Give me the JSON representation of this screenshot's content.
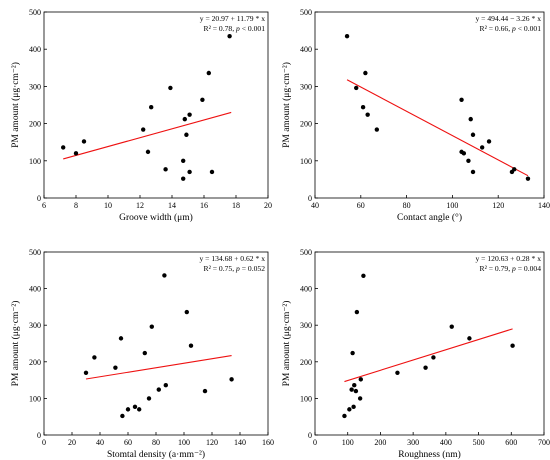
{
  "chart_data": [
    {
      "type": "scatter",
      "id": "groove",
      "xlabel": "Groove width (μm)",
      "ylabel": "PM amount (μg·cm⁻²)",
      "xlim": [
        6,
        20
      ],
      "ylim": [
        0,
        500
      ],
      "xticks": [
        6,
        8,
        10,
        12,
        14,
        16,
        18,
        20
      ],
      "yticks": [
        0,
        100,
        200,
        300,
        400,
        500
      ],
      "points": [
        [
          7.2,
          136
        ],
        [
          8.0,
          120
        ],
        [
          8.5,
          152
        ],
        [
          12.2,
          184
        ],
        [
          12.5,
          124
        ],
        [
          12.7,
          244
        ],
        [
          13.6,
          77
        ],
        [
          13.9,
          296
        ],
        [
          14.7,
          52
        ],
        [
          14.7,
          100
        ],
        [
          14.8,
          212
        ],
        [
          14.9,
          170
        ],
        [
          15.1,
          224
        ],
        [
          15.1,
          70
        ],
        [
          15.9,
          264
        ],
        [
          16.3,
          336
        ],
        [
          16.5,
          70
        ],
        [
          17.6,
          435
        ]
      ],
      "fit_line": {
        "x": [
          7.2,
          17.7
        ],
        "y": [
          105,
          230
        ],
        "color": "#ee1111"
      },
      "equation": "y = 20.97 + 11.79 * x",
      "r2_label": "R² = 0.78, ",
      "p_symbol": "p",
      "p_value": " < 0.001",
      "grid": false
    },
    {
      "type": "scatter",
      "id": "contact",
      "xlabel": "Contact angle (°)",
      "ylabel": "PM amount (μg·cm⁻²)",
      "xlim": [
        40,
        140
      ],
      "ylim": [
        0,
        500
      ],
      "xticks": [
        40,
        60,
        80,
        100,
        120,
        140
      ],
      "yticks": [
        0,
        100,
        200,
        300,
        400,
        500
      ],
      "points": [
        [
          54,
          435
        ],
        [
          58,
          296
        ],
        [
          61,
          244
        ],
        [
          62,
          336
        ],
        [
          63,
          224
        ],
        [
          67,
          184
        ],
        [
          104,
          264
        ],
        [
          104,
          124
        ],
        [
          105,
          120
        ],
        [
          107,
          100
        ],
        [
          108,
          212
        ],
        [
          109,
          170
        ],
        [
          109,
          70
        ],
        [
          113,
          136
        ],
        [
          116,
          152
        ],
        [
          126,
          70
        ],
        [
          127,
          77
        ],
        [
          133,
          52
        ]
      ],
      "fit_line": {
        "x": [
          54,
          133
        ],
        "y": [
          318,
          60
        ],
        "color": "#ee1111"
      },
      "equation": "y = 494.44 − 3.26 * x",
      "r2_label": "R² = 0.66, ",
      "p_symbol": "p",
      "p_value": " < 0.001",
      "grid": false
    },
    {
      "type": "scatter",
      "id": "stomatal",
      "xlabel": "Stomtal density (a·mm⁻²)",
      "ylabel": "PM amount (μg·cm⁻²)",
      "xlim": [
        0,
        160
      ],
      "ylim": [
        0,
        500
      ],
      "xticks": [
        0,
        20,
        40,
        60,
        80,
        100,
        120,
        140,
        160
      ],
      "yticks": [
        0,
        100,
        200,
        300,
        400,
        500
      ],
      "points": [
        [
          30,
          170
        ],
        [
          36,
          212
        ],
        [
          51,
          184
        ],
        [
          55,
          264
        ],
        [
          56,
          52
        ],
        [
          60,
          70
        ],
        [
          65,
          77
        ],
        [
          68,
          70
        ],
        [
          72,
          224
        ],
        [
          75,
          100
        ],
        [
          77,
          296
        ],
        [
          82,
          124
        ],
        [
          86,
          436
        ],
        [
          87,
          136
        ],
        [
          102,
          336
        ],
        [
          105,
          244
        ],
        [
          115,
          120
        ],
        [
          134,
          152
        ]
      ],
      "fit_line": {
        "x": [
          30,
          134
        ],
        "y": [
          153,
          217
        ],
        "color": "#ee1111"
      },
      "equation": "y = 134.68 + 0.62 * x",
      "r2_label": "R² = 0.75, ",
      "p_symbol": "p",
      "p_value": " = 0.052",
      "grid": false
    },
    {
      "type": "scatter",
      "id": "roughness",
      "xlabel": "Roughness (nm)",
      "ylabel": "PM amount (μg·cm⁻²)",
      "xlim": [
        0,
        700
      ],
      "ylim": [
        0,
        500
      ],
      "xticks": [
        0,
        100,
        200,
        300,
        400,
        500,
        600,
        700
      ],
      "yticks": [
        0,
        100,
        200,
        300,
        400,
        500
      ],
      "points": [
        [
          90,
          52
        ],
        [
          105,
          70
        ],
        [
          112,
          124
        ],
        [
          115,
          224
        ],
        [
          118,
          77
        ],
        [
          120,
          136
        ],
        [
          125,
          120
        ],
        [
          128,
          336
        ],
        [
          138,
          100
        ],
        [
          140,
          152
        ],
        [
          148,
          435
        ],
        [
          252,
          170
        ],
        [
          338,
          184
        ],
        [
          362,
          212
        ],
        [
          418,
          296
        ],
        [
          472,
          264
        ],
        [
          604,
          244
        ]
      ],
      "fit_line": {
        "x": [
          90,
          604
        ],
        "y": [
          146,
          290
        ],
        "color": "#ee1111"
      },
      "equation": "y = 120.63 + 0.28 * x",
      "r2_label": "R² = 0.79, ",
      "p_symbol": "p",
      "p_value": " = 0.004",
      "grid": false
    }
  ]
}
